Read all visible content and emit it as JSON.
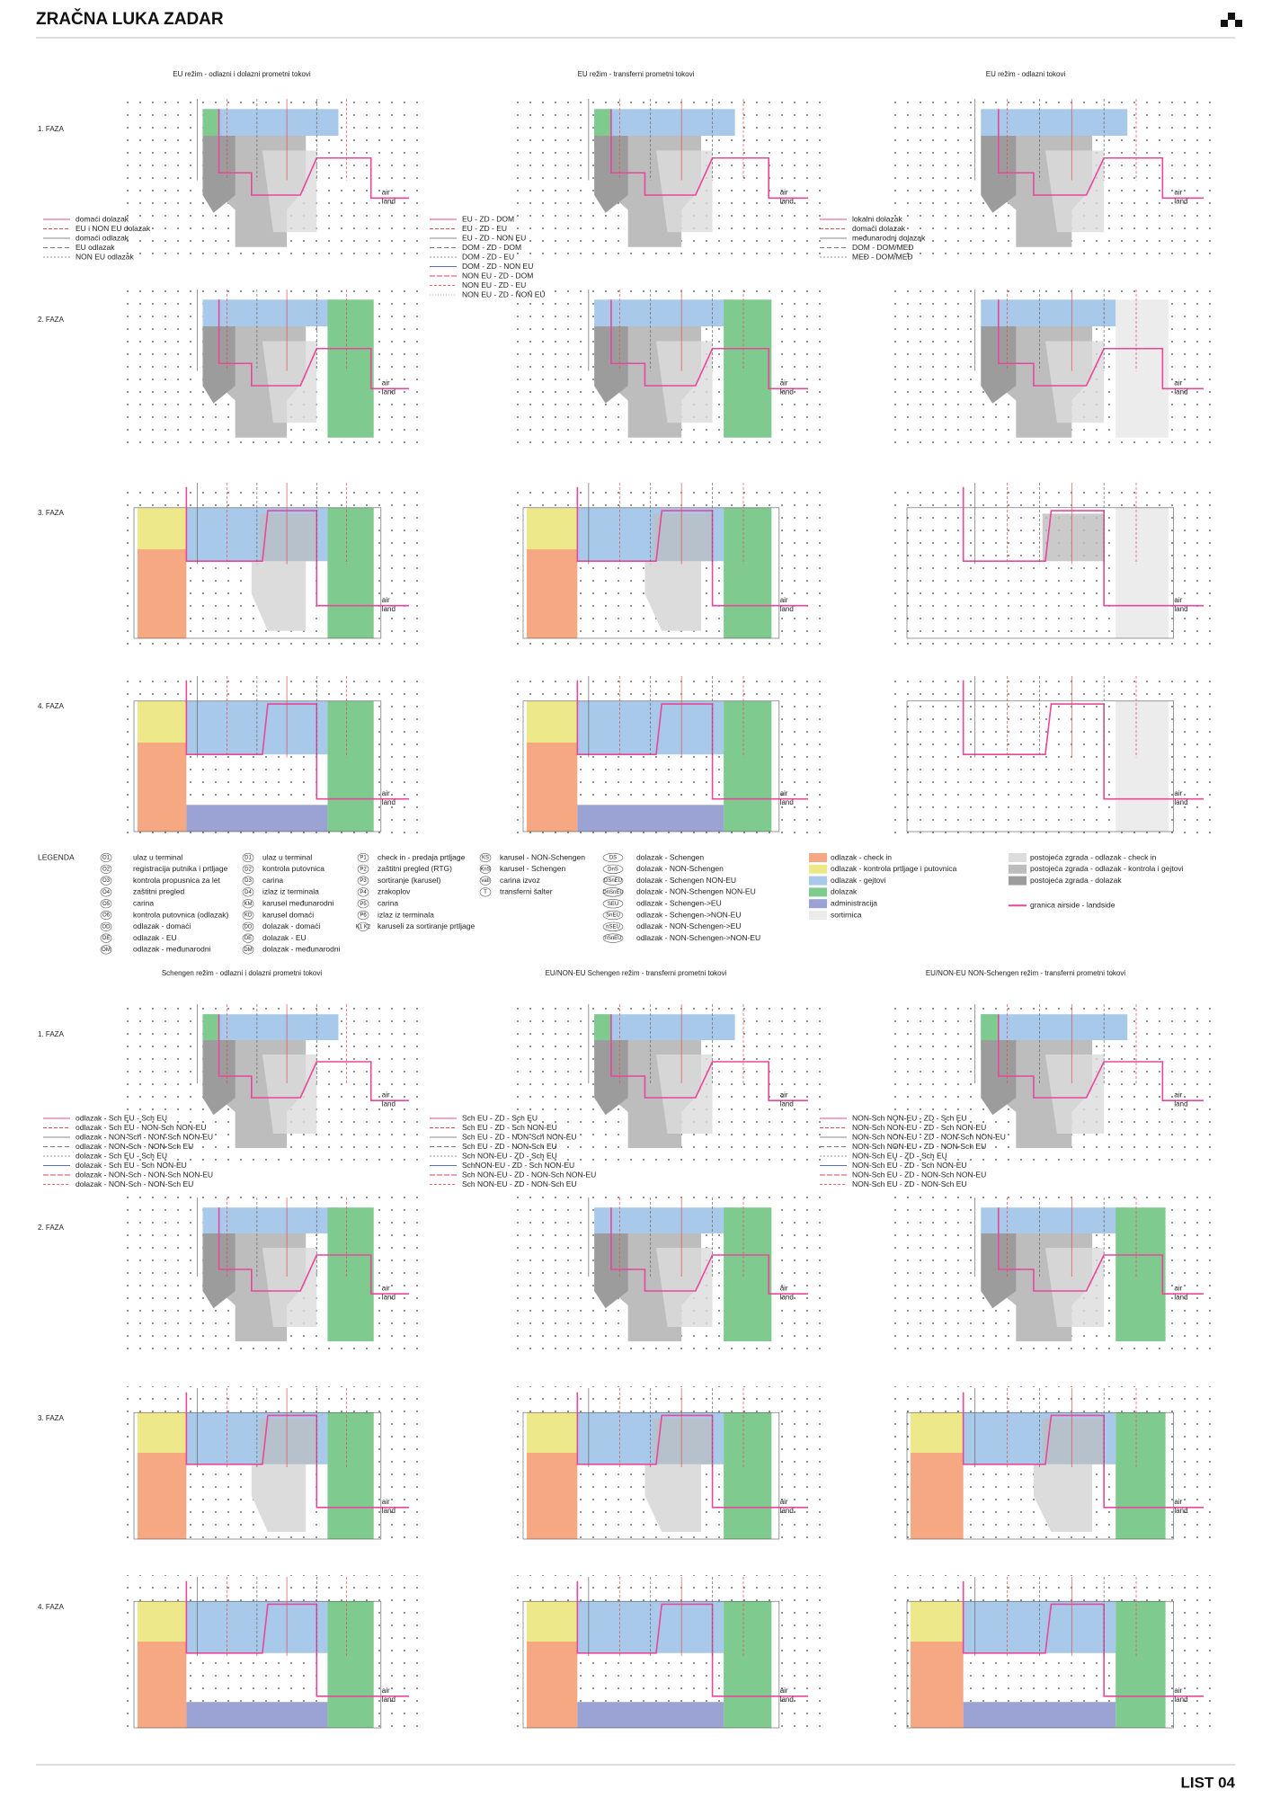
{
  "header": {
    "title": "ZRAČNA LUKA ZADAR"
  },
  "footer": {
    "sheet": "LIST 04"
  },
  "labels": {
    "air": "air",
    "land": "land",
    "phases": [
      "1. FAZA",
      "2. FAZA",
      "3. FAZA",
      "4. FAZA"
    ]
  },
  "sections": [
    {
      "columns": [
        {
          "title": "EU režim - odlazni i dolazni prometni tokovi",
          "legend": [
            "domaći dolazak",
            "EU i NON EU dolazak",
            "domaći odlazak",
            "EU odlazak",
            "NON EU odlazak"
          ]
        },
        {
          "title": "EU režim - transferni prometni tokovi",
          "legend": [
            "EU - ZD - DOM",
            "EU - ZD - EU",
            "EU - ZD - NON EU",
            "DOM - ZD - DOM",
            "DOM - ZD - EU",
            "DOM - ZD - NON EU",
            "NON EU - ZD - DOM",
            "NON EU - ZD - EU",
            "NON EU - ZD - NON EU"
          ]
        },
        {
          "title": "EU režim - odlazni tokovi",
          "legend": [
            "lokalni dolazak",
            "domaći dolazak",
            "međunarodni dolazak",
            "DOM - DOM/MEĐ",
            "MEĐ - DOM/MEĐ"
          ]
        }
      ]
    },
    {
      "columns": [
        {
          "title": "Schengen režim - odlazni i dolazni prometni tokovi",
          "legend": [
            "odlazak - Sch EU - Sch EU",
            "odlazak - Sch EU - NON-Sch NON-EU",
            "odlazak - NON-Sch - NON-Sch NON-EU",
            "odlazak - NON-Sch - NON-Sch EU",
            "dolazak - Sch EU - Sch EU",
            "dolazak - Sch EU - Sch NON-EU",
            "dolazak - NON-Sch - NON-Sch NON-EU",
            "dolazak - NON-Sch - NON-Sch EU"
          ]
        },
        {
          "title": "EU/NON-EU Schengen režim - transferni prometni tokovi",
          "legend": [
            "Sch EU - ZD - Sch EU",
            "Sch EU - ZD - Sch NON-EU",
            "Sch EU - ZD - NON-Sch NON-EU",
            "Sch EU - ZD - NON-Sch EU",
            "Sch NON-EU - ZD - Sch EU",
            "SchNON-EU - ZD - Sch NON-EU",
            "Sch NON-EU - ZD - NON-Sch NON-EU",
            "Sch NON-EU - ZD - NON-Sch EU"
          ]
        },
        {
          "title": "EU/NON-EU NON-Schengen režim - transferni prometni tokovi",
          "legend": [
            "NON-Sch NON-EU - ZD - Sch EU",
            "NON-Sch NON-EU - ZD - Sch NON-EU",
            "NON-Sch NON-EU - ZD - NON-Sch NON-EU",
            "NON-Sch NON-EU - ZD - NON-Sch EU",
            "NON-Sch EU - ZD - Sch EU",
            "NON-Sch EU - ZD - Sch NON-EU",
            "NON-Sch EU - ZD - NON-Sch NON-EU",
            "NON-Sch EU - ZD - NON-Sch EU"
          ]
        }
      ]
    }
  ],
  "legend": {
    "title": "LEGENDA",
    "groups": [
      [
        {
          "code": "O1",
          "text": "ulaz u terminal"
        },
        {
          "code": "O2",
          "text": "registracija putnika i prtljage"
        },
        {
          "code": "O3",
          "text": "kontrola propusnica za let"
        },
        {
          "code": "O4",
          "text": "zaštitni pregled"
        },
        {
          "code": "O5",
          "text": "carina"
        },
        {
          "code": "O6",
          "text": "kontrola putovnica (odlazak)"
        },
        {
          "code": "OD",
          "text": "odlazak - domaći"
        },
        {
          "code": "OE",
          "text": "odlazak - EU"
        },
        {
          "code": "OM",
          "text": "odlazak - međunarodni"
        }
      ],
      [
        {
          "code": "D1",
          "text": "ulaz u terminal"
        },
        {
          "code": "D2",
          "text": "kontrola putovnica"
        },
        {
          "code": "D3",
          "text": "carina"
        },
        {
          "code": "D4",
          "text": "izlaz iz terminala"
        },
        {
          "code": "KM",
          "text": "karusel međunarodni"
        },
        {
          "code": "KD",
          "text": "karusel domaći"
        },
        {
          "code": "DD",
          "text": "dolazak - domaći"
        },
        {
          "code": "DE",
          "text": "dolazak - EU"
        },
        {
          "code": "DM",
          "text": "dolazak - međunarodni"
        }
      ],
      [
        {
          "code": "P1",
          "text": "check in - predaja prtljage"
        },
        {
          "code": "P2",
          "text": "zaštitni pregled (RTG)"
        },
        {
          "code": "P3",
          "text": "sortiranje (karusel)"
        },
        {
          "code": "P4",
          "text": "zrakoplov"
        },
        {
          "code": "P5",
          "text": "carina"
        },
        {
          "code": "P6",
          "text": "izlaz iz terminala"
        },
        {
          "code": "K1 K2",
          "text": "karuseli za sortiranje prtljage"
        }
      ],
      [
        {
          "code": "KS",
          "text": "karusel - NON-Schengen"
        },
        {
          "code": "KnS",
          "text": "karusel - Schengen"
        },
        {
          "code": "vati",
          "text": "carina izvoz"
        },
        {
          "code": "T",
          "text": "transferni šalter"
        }
      ],
      [
        {
          "code": "DS",
          "text": "dolazak - Schengen"
        },
        {
          "code": "DnS",
          "text": "dolazak - NON-Schengen"
        },
        {
          "code": "DSnEU",
          "text": "dolazak - Schengen NON-EU"
        },
        {
          "code": "DnSnEU",
          "text": "dolazak - NON-Schengen NON-EU"
        },
        {
          "code": "SEU",
          "text": "odlazak - Schengen->EU"
        },
        {
          "code": "SnEU",
          "text": "odlazak - Schengen->NON-EU"
        },
        {
          "code": "nSEU",
          "text": "odlazak - NON-Schengen->EU"
        },
        {
          "code": "nSnEU",
          "text": "odlazak - NON-Schengen->NON-EU"
        }
      ]
    ],
    "zones": [
      {
        "text": "odlazak - check in",
        "color": "#f5a882"
      },
      {
        "text": "odlazak - kontrola prtljage i putovnica",
        "color": "#ede98b"
      },
      {
        "text": "odlazak - gejtovi",
        "color": "#a8c9ea"
      },
      {
        "text": "dolazak",
        "color": "#7fca8f"
      },
      {
        "text": "administracija",
        "color": "#9aa3d3"
      },
      {
        "text": "sortirnica",
        "color": "#ececec"
      }
    ],
    "existing": [
      {
        "text": "postojeća zgrada - odlazak - check in",
        "color": "#dcdcdc"
      },
      {
        "text": "postojeća zgrada - odlazak - kontrola i gejtovi",
        "color": "#bdbdbd"
      },
      {
        "text": "postojeća zgrada - dolazak",
        "color": "#9c9c9c"
      }
    ],
    "boundary": {
      "text": "granica airside - landside",
      "color": "#e8479a"
    }
  }
}
